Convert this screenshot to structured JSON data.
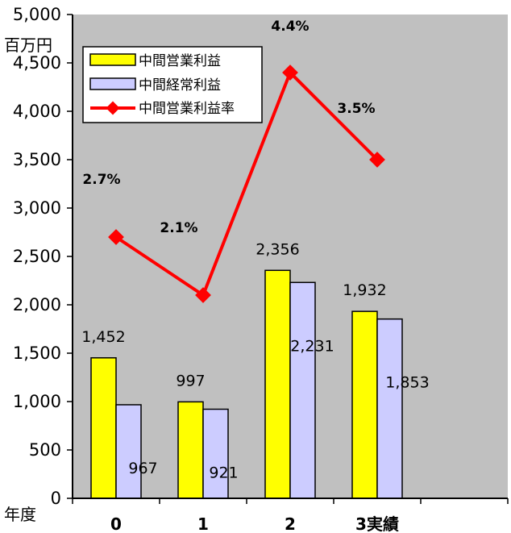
{
  "chart_data": {
    "type": "bar",
    "categories": [
      "0",
      "1",
      "2",
      "3実績"
    ],
    "y_unit": "百万円",
    "x_unit": "年度",
    "ylim": [
      0,
      5000
    ],
    "yticks": [
      "0",
      "500",
      "1,000",
      "1,500",
      "2,000",
      "2,500",
      "3,000",
      "3,500",
      "4,000",
      "4,500",
      "5,000"
    ],
    "grid": false,
    "legend_position": "top-left",
    "series": [
      {
        "name": "中間営業利益",
        "kind": "bar",
        "color": "#ffff00",
        "values": [
          1452,
          997,
          2356,
          1932
        ],
        "labels": [
          "1,452",
          "997",
          "2,356",
          "1,932"
        ]
      },
      {
        "name": "中間経常利益",
        "kind": "bar",
        "color": "#ccccff",
        "values": [
          967,
          921,
          2231,
          1853
        ],
        "labels": [
          "967",
          "921",
          "2,231",
          "1,853"
        ]
      },
      {
        "name": "中間営業利益率",
        "kind": "line",
        "color": "#ff0000",
        "values": [
          2.7,
          2.1,
          4.4,
          3.5
        ],
        "labels": [
          "2.7%",
          "2.1%",
          "4.4%",
          "3.5%"
        ]
      }
    ],
    "plot_background": "#c0c0c0"
  }
}
